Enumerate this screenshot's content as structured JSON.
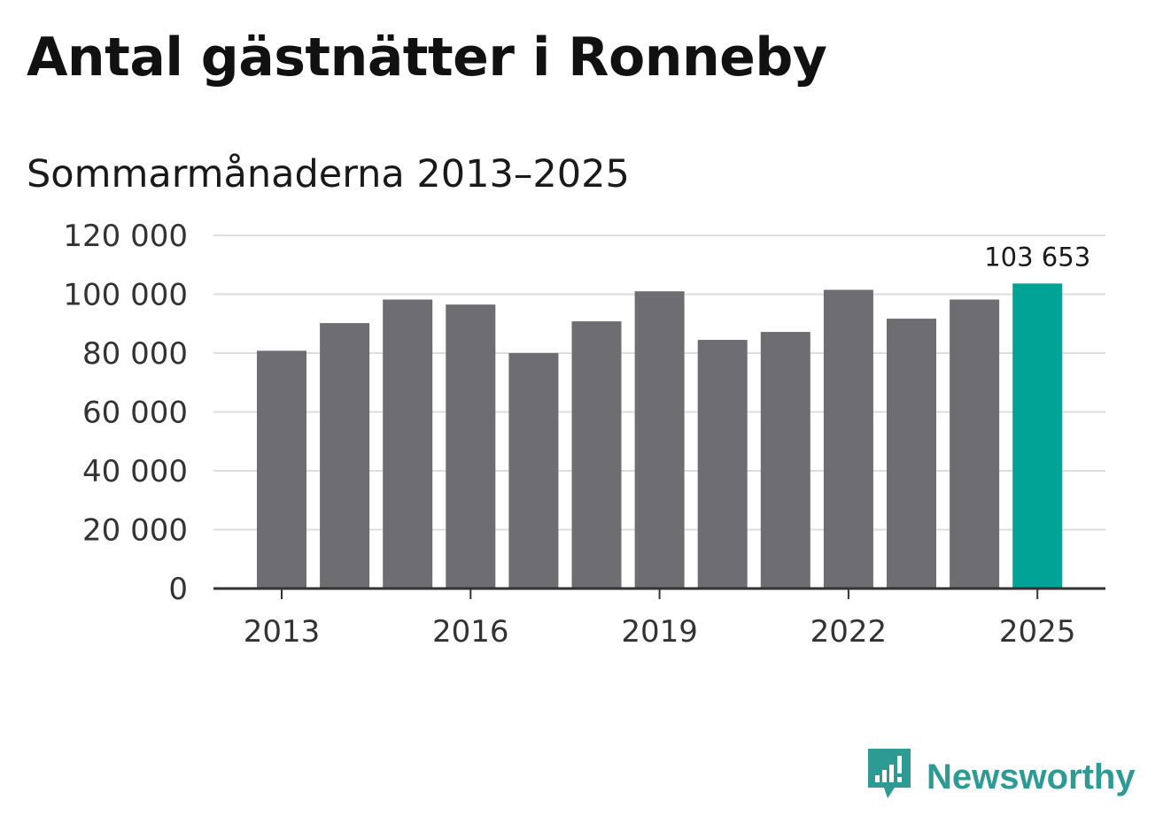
{
  "header": {
    "title": "Antal gästnätter i Ronneby",
    "subtitle": "Sommarmånaderna 2013–2025"
  },
  "brand": {
    "name": "Newsworthy",
    "icon": "newsworthy-logo-icon",
    "color": "#2e9a94"
  },
  "colors": {
    "bar": "#6e6d72",
    "highlight": "#00a396",
    "grid": "#dddddd",
    "axis": "#333333"
  },
  "chart_data": {
    "type": "bar",
    "title": "Antal gästnätter i Ronneby",
    "subtitle": "Sommarmånaderna 2013–2025",
    "xlabel": "",
    "ylabel": "",
    "categories": [
      "2013",
      "2014",
      "2015",
      "2016",
      "2017",
      "2018",
      "2019",
      "2020",
      "2021",
      "2022",
      "2023",
      "2024",
      "2025"
    ],
    "values": [
      80800,
      90200,
      98200,
      96500,
      80000,
      90800,
      101000,
      84500,
      87200,
      101500,
      91700,
      98200,
      103653
    ],
    "highlight_index": 12,
    "data_labels": [
      {
        "index": 12,
        "text": "103 653"
      }
    ],
    "x_tick_labels": [
      "2013",
      "2016",
      "2019",
      "2022",
      "2025"
    ],
    "x_tick_indices": [
      0,
      3,
      6,
      9,
      12
    ],
    "y_ticks": [
      0,
      20000,
      40000,
      60000,
      80000,
      100000,
      120000
    ],
    "y_tick_labels": [
      "0",
      "20 000",
      "40 000",
      "60 000",
      "80 000",
      "100 000",
      "120 000"
    ],
    "ylim": [
      0,
      120000
    ],
    "grid": true,
    "legend": "none"
  }
}
